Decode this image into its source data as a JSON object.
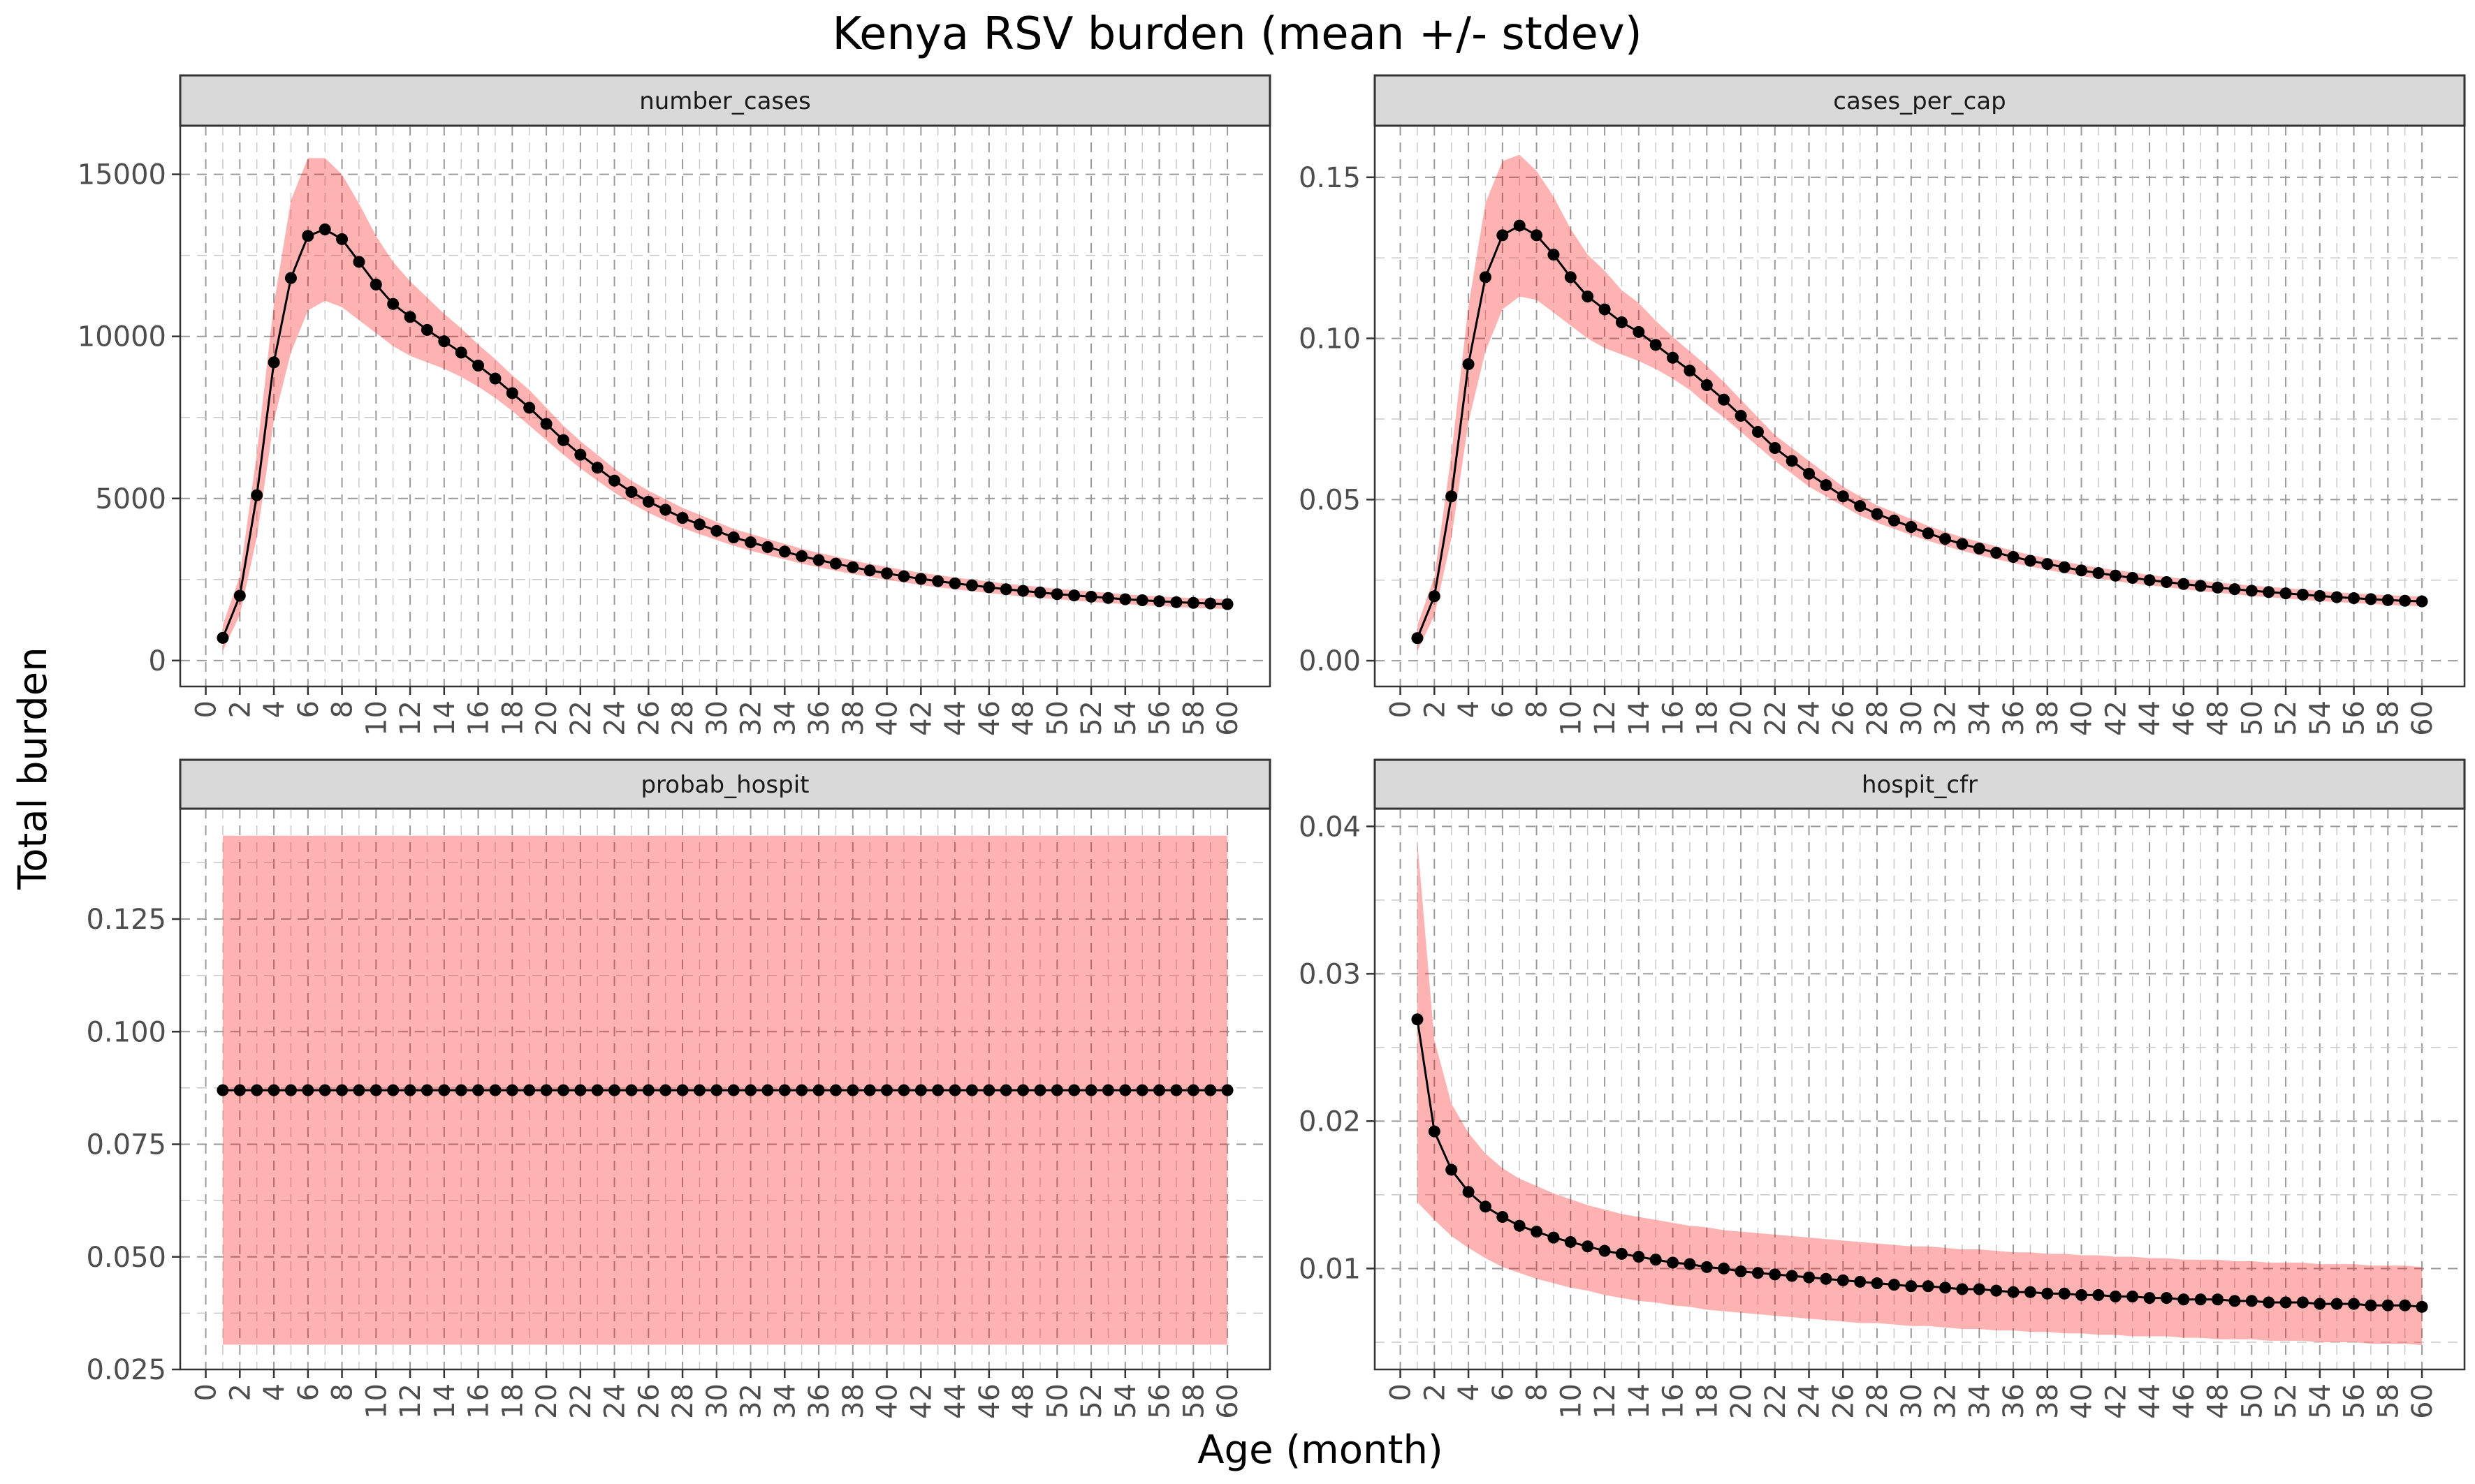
{
  "chart_data": {
    "type": "line",
    "title": "Kenya RSV burden (mean +/- stdev)",
    "xlabel": "Age (month)",
    "ylabel": "Total burden",
    "x_ticks": [
      0,
      2,
      4,
      6,
      8,
      10,
      12,
      14,
      16,
      18,
      20,
      22,
      24,
      26,
      28,
      30,
      32,
      34,
      36,
      38,
      40,
      42,
      44,
      46,
      48,
      50,
      52,
      54,
      56,
      58,
      60
    ],
    "xlim": [
      -1.5,
      62.5
    ],
    "grid": true,
    "colors": {
      "band": "#ff0000",
      "line": "#000000",
      "point": "#000000",
      "strip": "#d9d9d9"
    },
    "panels": [
      {
        "name": "number_cases",
        "ylim": [
          -800,
          16500
        ],
        "y_ticks": [
          0,
          5000,
          10000,
          15000
        ],
        "y_tick_labels": [
          "0",
          "5000",
          "10000",
          "15000"
        ],
        "x": [
          1,
          2,
          3,
          4,
          5,
          6,
          7,
          8,
          9,
          10,
          11,
          12,
          13,
          14,
          15,
          16,
          17,
          18,
          19,
          20,
          21,
          22,
          23,
          24,
          25,
          26,
          27,
          28,
          29,
          30,
          31,
          32,
          33,
          34,
          35,
          36,
          37,
          38,
          39,
          40,
          41,
          42,
          43,
          44,
          45,
          46,
          47,
          48,
          49,
          50,
          51,
          52,
          53,
          54,
          55,
          56,
          57,
          58,
          59,
          60
        ],
        "mean": [
          700,
          2000,
          5100,
          9200,
          11800,
          13100,
          13300,
          13000,
          12300,
          11600,
          11000,
          10600,
          10200,
          9850,
          9500,
          9100,
          8700,
          8250,
          7800,
          7300,
          6800,
          6350,
          5950,
          5550,
          5200,
          4900,
          4650,
          4400,
          4200,
          4000,
          3800,
          3650,
          3500,
          3360,
          3220,
          3100,
          2990,
          2880,
          2780,
          2690,
          2600,
          2520,
          2450,
          2380,
          2320,
          2260,
          2200,
          2150,
          2100,
          2050,
          2010,
          1970,
          1930,
          1890,
          1860,
          1830,
          1800,
          1780,
          1760,
          1740
        ],
        "lower": [
          300,
          1400,
          3800,
          7400,
          9500,
          10800,
          11100,
          10900,
          10500,
          10100,
          9700,
          9400,
          9200,
          9000,
          8750,
          8450,
          8100,
          7700,
          7250,
          6800,
          6350,
          5930,
          5550,
          5180,
          4850,
          4560,
          4320,
          4090,
          3900,
          3720,
          3540,
          3390,
          3250,
          3120,
          2990,
          2880,
          2770,
          2670,
          2580,
          2490,
          2410,
          2330,
          2260,
          2200,
          2140,
          2080,
          2030,
          1980,
          1930,
          1890,
          1850,
          1810,
          1770,
          1740,
          1710,
          1680,
          1650,
          1630,
          1610,
          1590
        ],
        "upper": [
          1100,
          2600,
          6400,
          11000,
          14200,
          15500,
          15500,
          15000,
          14100,
          13100,
          12300,
          11700,
          11200,
          10700,
          10250,
          9750,
          9300,
          8800,
          8350,
          7800,
          7250,
          6770,
          6350,
          5920,
          5550,
          5240,
          4980,
          4710,
          4500,
          4280,
          4060,
          3910,
          3750,
          3600,
          3450,
          3320,
          3210,
          3090,
          2980,
          2890,
          2790,
          2710,
          2640,
          2560,
          2500,
          2440,
          2370,
          2320,
          2270,
          2210,
          2170,
          2130,
          2090,
          2040,
          2010,
          1980,
          1950,
          1930,
          1910,
          1890
        ]
      },
      {
        "name": "cases_per_cap",
        "ylim": [
          -0.008,
          0.166
        ],
        "y_ticks": [
          0,
          0.05,
          0.1,
          0.15
        ],
        "y_tick_labels": [
          "0.00",
          "0.05",
          "0.10",
          "0.15"
        ],
        "x": [
          1,
          2,
          3,
          4,
          5,
          6,
          7,
          8,
          9,
          10,
          11,
          12,
          13,
          14,
          15,
          16,
          17,
          18,
          19,
          20,
          21,
          22,
          23,
          24,
          25,
          26,
          27,
          28,
          29,
          30,
          31,
          32,
          33,
          34,
          35,
          36,
          37,
          38,
          39,
          40,
          41,
          42,
          43,
          44,
          45,
          46,
          47,
          48,
          49,
          50,
          51,
          52,
          53,
          54,
          55,
          56,
          57,
          58,
          59,
          60
        ],
        "mean": [
          0.007,
          0.02,
          0.051,
          0.092,
          0.119,
          0.132,
          0.135,
          0.132,
          0.126,
          0.119,
          0.113,
          0.109,
          0.105,
          0.102,
          0.098,
          0.094,
          0.09,
          0.0855,
          0.081,
          0.076,
          0.071,
          0.066,
          0.062,
          0.058,
          0.0545,
          0.051,
          0.048,
          0.0455,
          0.0435,
          0.0415,
          0.0395,
          0.0378,
          0.0362,
          0.0348,
          0.0335,
          0.0322,
          0.031,
          0.03,
          0.029,
          0.028,
          0.0272,
          0.0264,
          0.0257,
          0.025,
          0.0244,
          0.0238,
          0.0232,
          0.0227,
          0.0222,
          0.0217,
          0.0213,
          0.0209,
          0.0205,
          0.0201,
          0.0197,
          0.0194,
          0.0191,
          0.0188,
          0.0186,
          0.0184
        ],
        "lower": [
          0.003,
          0.014,
          0.038,
          0.074,
          0.096,
          0.109,
          0.113,
          0.112,
          0.108,
          0.104,
          0.1,
          0.097,
          0.095,
          0.093,
          0.0905,
          0.0875,
          0.084,
          0.0795,
          0.0755,
          0.071,
          0.0665,
          0.062,
          0.058,
          0.054,
          0.051,
          0.048,
          0.045,
          0.0428,
          0.0409,
          0.039,
          0.0372,
          0.0356,
          0.0341,
          0.0327,
          0.0315,
          0.0303,
          0.0292,
          0.0282,
          0.0272,
          0.0263,
          0.0255,
          0.0247,
          0.024,
          0.0234,
          0.0228,
          0.0222,
          0.0216,
          0.0211,
          0.0206,
          0.0201,
          0.0197,
          0.0193,
          0.0189,
          0.0185,
          0.0182,
          0.0179,
          0.0176,
          0.0173,
          0.0171,
          0.0169
        ],
        "upper": [
          0.011,
          0.026,
          0.064,
          0.11,
          0.142,
          0.155,
          0.157,
          0.152,
          0.144,
          0.134,
          0.126,
          0.121,
          0.115,
          0.111,
          0.1055,
          0.1005,
          0.096,
          0.0915,
          0.0865,
          0.081,
          0.0755,
          0.07,
          0.066,
          0.062,
          0.058,
          0.054,
          0.051,
          0.0482,
          0.0461,
          0.044,
          0.0418,
          0.04,
          0.0383,
          0.0369,
          0.0355,
          0.0341,
          0.0328,
          0.0318,
          0.0308,
          0.0297,
          0.0289,
          0.0281,
          0.0274,
          0.0266,
          0.026,
          0.0254,
          0.0248,
          0.0243,
          0.0238,
          0.0233,
          0.0229,
          0.0225,
          0.0221,
          0.0217,
          0.0212,
          0.0209,
          0.0206,
          0.0203,
          0.0201,
          0.0199
        ]
      },
      {
        "name": "probab_hospit",
        "ylim": [
          0.025,
          0.1495
        ],
        "y_ticks": [
          0.025,
          0.05,
          0.075,
          0.1,
          0.125
        ],
        "y_tick_labels": [
          "0.025",
          "0.050",
          "0.075",
          "0.100",
          "0.125"
        ],
        "x": [
          1,
          2,
          3,
          4,
          5,
          6,
          7,
          8,
          9,
          10,
          11,
          12,
          13,
          14,
          15,
          16,
          17,
          18,
          19,
          20,
          21,
          22,
          23,
          24,
          25,
          26,
          27,
          28,
          29,
          30,
          31,
          32,
          33,
          34,
          35,
          36,
          37,
          38,
          39,
          40,
          41,
          42,
          43,
          44,
          45,
          46,
          47,
          48,
          49,
          50,
          51,
          52,
          53,
          54,
          55,
          56,
          57,
          58,
          59,
          60
        ],
        "mean": [
          0.087,
          0.087,
          0.087,
          0.087,
          0.087,
          0.087,
          0.087,
          0.087,
          0.087,
          0.087,
          0.087,
          0.087,
          0.087,
          0.087,
          0.087,
          0.087,
          0.087,
          0.087,
          0.087,
          0.087,
          0.087,
          0.087,
          0.087,
          0.087,
          0.087,
          0.087,
          0.087,
          0.087,
          0.087,
          0.087,
          0.087,
          0.087,
          0.087,
          0.087,
          0.087,
          0.087,
          0.087,
          0.087,
          0.087,
          0.087,
          0.087,
          0.087,
          0.087,
          0.087,
          0.087,
          0.087,
          0.087,
          0.087,
          0.087,
          0.087,
          0.087,
          0.087,
          0.087,
          0.087,
          0.087,
          0.087,
          0.087,
          0.087,
          0.087,
          0.087
        ],
        "lower": [
          0.0305,
          0.0305,
          0.0305,
          0.0305,
          0.0305,
          0.0305,
          0.0305,
          0.0305,
          0.0305,
          0.0305,
          0.0305,
          0.0305,
          0.0305,
          0.0305,
          0.0305,
          0.0305,
          0.0305,
          0.0305,
          0.0305,
          0.0305,
          0.0305,
          0.0305,
          0.0305,
          0.0305,
          0.0305,
          0.0305,
          0.0305,
          0.0305,
          0.0305,
          0.0305,
          0.0305,
          0.0305,
          0.0305,
          0.0305,
          0.0305,
          0.0305,
          0.0305,
          0.0305,
          0.0305,
          0.0305,
          0.0305,
          0.0305,
          0.0305,
          0.0305,
          0.0305,
          0.0305,
          0.0305,
          0.0305,
          0.0305,
          0.0305,
          0.0305,
          0.0305,
          0.0305,
          0.0305,
          0.0305,
          0.0305,
          0.0305,
          0.0305,
          0.0305,
          0.0305
        ],
        "upper": [
          0.1435,
          0.1435,
          0.1435,
          0.1435,
          0.1435,
          0.1435,
          0.1435,
          0.1435,
          0.1435,
          0.1435,
          0.1435,
          0.1435,
          0.1435,
          0.1435,
          0.1435,
          0.1435,
          0.1435,
          0.1435,
          0.1435,
          0.1435,
          0.1435,
          0.1435,
          0.1435,
          0.1435,
          0.1435,
          0.1435,
          0.1435,
          0.1435,
          0.1435,
          0.1435,
          0.1435,
          0.1435,
          0.1435,
          0.1435,
          0.1435,
          0.1435,
          0.1435,
          0.1435,
          0.1435,
          0.1435,
          0.1435,
          0.1435,
          0.1435,
          0.1435,
          0.1435,
          0.1435,
          0.1435,
          0.1435,
          0.1435,
          0.1435,
          0.1435,
          0.1435,
          0.1435,
          0.1435,
          0.1435,
          0.1435,
          0.1435,
          0.1435,
          0.1435,
          0.1435
        ]
      },
      {
        "name": "hospit_cfr",
        "ylim": [
          0.00315,
          0.0412
        ],
        "y_ticks": [
          0.01,
          0.02,
          0.03,
          0.04
        ],
        "y_tick_labels": [
          "0.01",
          "0.02",
          "0.03",
          "0.04"
        ],
        "x": [
          1,
          2,
          3,
          4,
          5,
          6,
          7,
          8,
          9,
          10,
          11,
          12,
          13,
          14,
          15,
          16,
          17,
          18,
          19,
          20,
          21,
          22,
          23,
          24,
          25,
          26,
          27,
          28,
          29,
          30,
          31,
          32,
          33,
          34,
          35,
          36,
          37,
          38,
          39,
          40,
          41,
          42,
          43,
          44,
          45,
          46,
          47,
          48,
          49,
          50,
          51,
          52,
          53,
          54,
          55,
          56,
          57,
          58,
          59,
          60
        ],
        "mean": [
          0.0269,
          0.0193,
          0.0167,
          0.0152,
          0.0142,
          0.0135,
          0.0129,
          0.0125,
          0.0121,
          0.0118,
          0.0115,
          0.0112,
          0.011,
          0.0108,
          0.0106,
          0.0104,
          0.0103,
          0.0101,
          0.01,
          0.0098,
          0.0097,
          0.0096,
          0.0095,
          0.0094,
          0.0093,
          0.0092,
          0.0091,
          0.009,
          0.0089,
          0.0088,
          0.0088,
          0.0087,
          0.0086,
          0.0086,
          0.0085,
          0.0084,
          0.0084,
          0.0083,
          0.0083,
          0.0082,
          0.0082,
          0.0081,
          0.0081,
          0.008,
          0.008,
          0.0079,
          0.0079,
          0.0079,
          0.0078,
          0.0078,
          0.0077,
          0.0077,
          0.0077,
          0.0076,
          0.0076,
          0.0076,
          0.0075,
          0.0075,
          0.0075,
          0.0074
        ],
        "lower": [
          0.0145,
          0.0133,
          0.0122,
          0.0114,
          0.0107,
          0.0101,
          0.0097,
          0.0093,
          0.009,
          0.0087,
          0.0085,
          0.0082,
          0.008,
          0.0078,
          0.0077,
          0.0075,
          0.0074,
          0.0072,
          0.0071,
          0.007,
          0.0069,
          0.0068,
          0.0067,
          0.0066,
          0.0065,
          0.0064,
          0.0063,
          0.0063,
          0.0062,
          0.0061,
          0.0061,
          0.006,
          0.0059,
          0.0059,
          0.0058,
          0.0058,
          0.0057,
          0.0057,
          0.0056,
          0.0056,
          0.0055,
          0.0055,
          0.0054,
          0.0054,
          0.0054,
          0.0053,
          0.0053,
          0.0052,
          0.0052,
          0.0052,
          0.0051,
          0.0051,
          0.0051,
          0.005,
          0.005,
          0.005,
          0.0049,
          0.0049,
          0.0049,
          0.0048
        ],
        "upper": [
          0.039,
          0.0255,
          0.0212,
          0.0192,
          0.0178,
          0.0168,
          0.0161,
          0.0156,
          0.0151,
          0.0147,
          0.0143,
          0.014,
          0.0137,
          0.0135,
          0.0133,
          0.0131,
          0.0129,
          0.0128,
          0.0126,
          0.0125,
          0.0124,
          0.0123,
          0.0122,
          0.0121,
          0.012,
          0.0119,
          0.0118,
          0.0117,
          0.0116,
          0.0115,
          0.0115,
          0.0114,
          0.0113,
          0.0113,
          0.0112,
          0.0111,
          0.0111,
          0.011,
          0.011,
          0.0109,
          0.0109,
          0.0108,
          0.0108,
          0.0107,
          0.0107,
          0.0106,
          0.0106,
          0.0106,
          0.0105,
          0.0105,
          0.0104,
          0.0104,
          0.0104,
          0.0103,
          0.0103,
          0.0103,
          0.0102,
          0.0102,
          0.0102,
          0.0101
        ]
      }
    ]
  }
}
